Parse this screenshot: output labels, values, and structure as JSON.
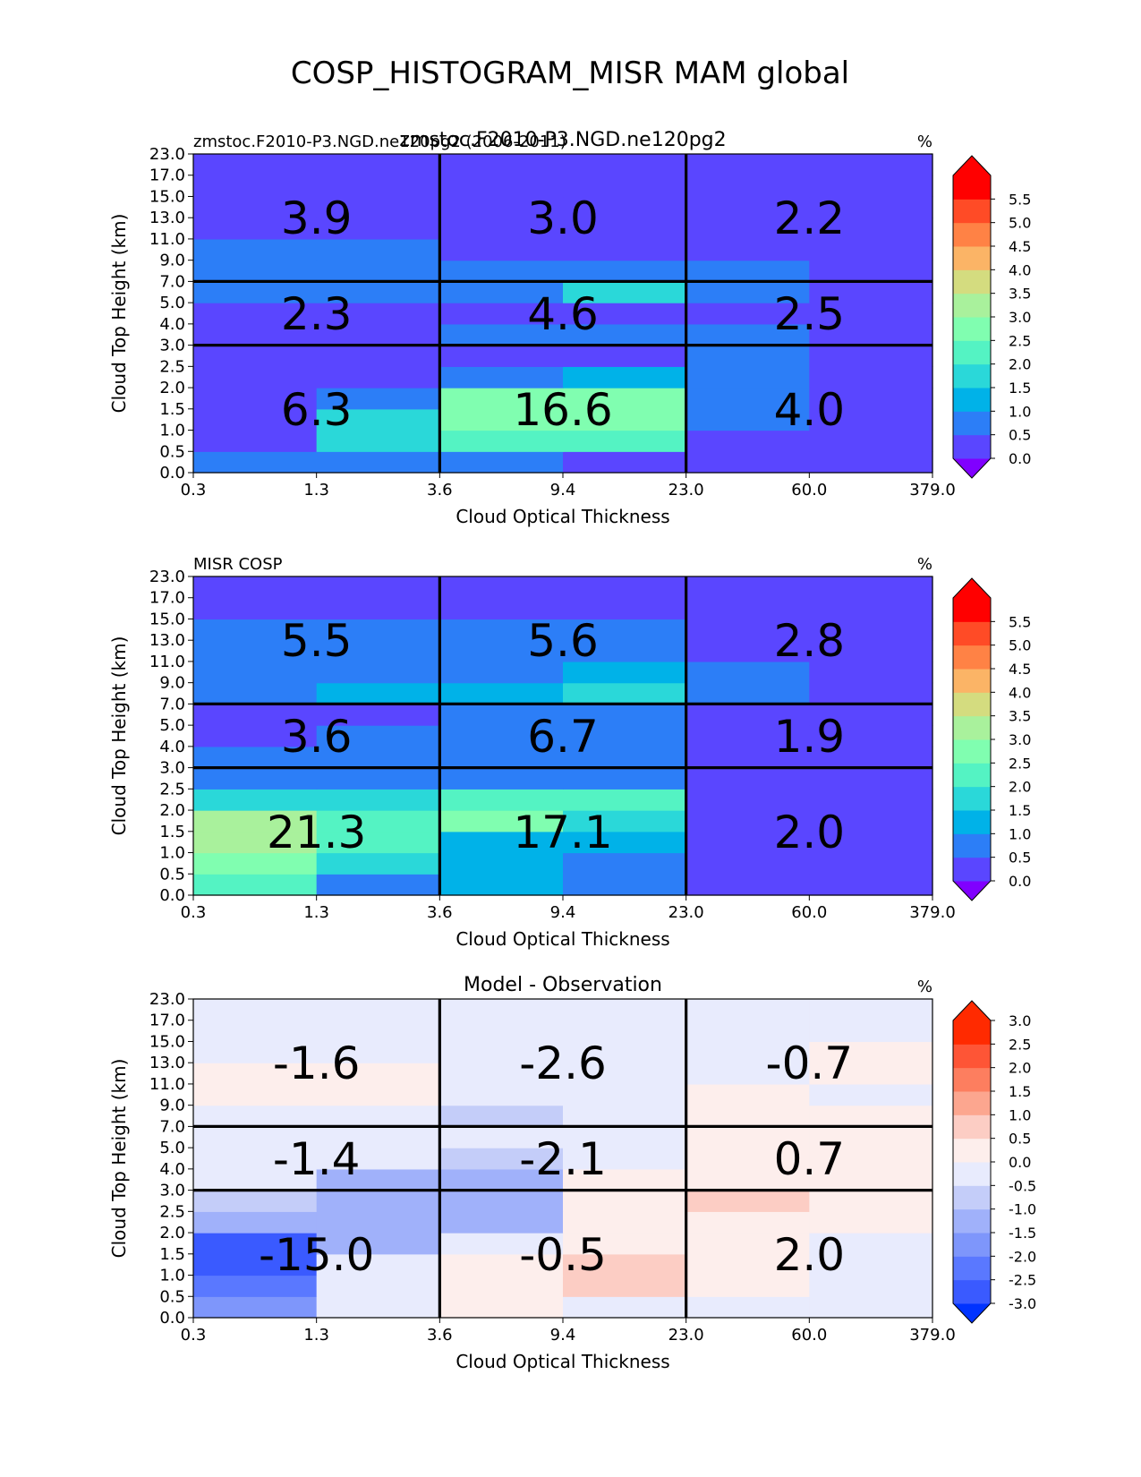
{
  "suptitle": "COSP_HISTOGRAM_MISR MAM global",
  "chart_data": [
    {
      "type": "heatmap",
      "title": "zmstoc.F2010-P3.NGD.ne120pg2",
      "left_title": "zmstoc.F2010-P3.NGD.ne120pg2 (2006-2011)",
      "right_title": "%",
      "xlabel": "Cloud Optical Thickness",
      "ylabel": "Cloud Top Height (km)",
      "x_ticks": [
        "0.3",
        "1.3",
        "3.6",
        "9.4",
        "23.0",
        "60.0",
        "379.0"
      ],
      "y_ticks": [
        "0.0",
        "0.5",
        "1.0",
        "1.5",
        "2.0",
        "2.5",
        "3.0",
        "4.0",
        "5.0",
        "7.0",
        "9.0",
        "11.0",
        "13.0",
        "15.0",
        "17.0",
        "23.0"
      ],
      "colorbar_ticks": [
        "0.0",
        "0.5",
        "1.0",
        "1.5",
        "2.0",
        "2.5",
        "3.0",
        "3.5",
        "4.0",
        "4.5",
        "5.0",
        "5.5"
      ],
      "colormap": "rainbow",
      "levels": [
        0,
        0.5,
        1,
        1.5,
        2,
        2.5,
        3,
        3.5,
        4,
        4.5,
        5,
        5.5
      ],
      "values": [
        [
          0.7,
          0.7,
          0.7,
          0.2,
          0.2,
          0.2
        ],
        [
          0.2,
          1.7,
          2.2,
          2.2,
          0.2,
          0.2
        ],
        [
          0.2,
          1.7,
          2.7,
          2.7,
          0.7,
          0.2
        ],
        [
          0.2,
          0.7,
          2.7,
          2.7,
          0.7,
          0.2
        ],
        [
          0.2,
          0.2,
          0.7,
          1.2,
          0.7,
          0.2
        ],
        [
          0.2,
          0.2,
          0.2,
          0.2,
          0.7,
          0.2
        ],
        [
          0.2,
          0.2,
          0.7,
          0.7,
          0.7,
          0.2
        ],
        [
          0.2,
          0.2,
          0.2,
          0.2,
          0.2,
          0.2
        ],
        [
          0.7,
          0.7,
          0.7,
          1.7,
          0.7,
          0.2
        ],
        [
          0.7,
          0.7,
          0.7,
          0.7,
          0.7,
          0.2
        ],
        [
          0.7,
          0.7,
          0.2,
          0.2,
          0.2,
          0.2
        ],
        [
          0.2,
          0.2,
          0.2,
          0.2,
          0.2,
          0.2
        ],
        [
          0.2,
          0.2,
          0.2,
          0.2,
          0.2,
          0.2
        ],
        [
          0.2,
          0.2,
          0.2,
          0.2,
          0.2,
          0.2
        ],
        [
          0.2,
          0.2,
          0.2,
          0.2,
          0.2,
          0.2
        ]
      ],
      "annotations": [
        {
          "col": 0,
          "row": 0,
          "text": "6.3"
        },
        {
          "col": 1,
          "row": 0,
          "text": "16.6"
        },
        {
          "col": 2,
          "row": 0,
          "text": "4.0"
        },
        {
          "col": 0,
          "row": 1,
          "text": "2.3"
        },
        {
          "col": 1,
          "row": 1,
          "text": "4.6"
        },
        {
          "col": 2,
          "row": 1,
          "text": "2.5"
        },
        {
          "col": 0,
          "row": 2,
          "text": "3.9"
        },
        {
          "col": 1,
          "row": 2,
          "text": "3.0"
        },
        {
          "col": 2,
          "row": 2,
          "text": "2.2"
        }
      ]
    },
    {
      "type": "heatmap",
      "title": "",
      "left_title": "MISR COSP",
      "right_title": "%",
      "xlabel": "Cloud Optical Thickness",
      "ylabel": "Cloud Top Height (km)",
      "x_ticks": [
        "0.3",
        "1.3",
        "3.6",
        "9.4",
        "23.0",
        "60.0",
        "379.0"
      ],
      "y_ticks": [
        "0.0",
        "0.5",
        "1.0",
        "1.5",
        "2.0",
        "2.5",
        "3.0",
        "4.0",
        "5.0",
        "7.0",
        "9.0",
        "11.0",
        "13.0",
        "15.0",
        "17.0",
        "23.0"
      ],
      "colorbar_ticks": [
        "0.0",
        "0.5",
        "1.0",
        "1.5",
        "2.0",
        "2.5",
        "3.0",
        "3.5",
        "4.0",
        "4.5",
        "5.0",
        "5.5"
      ],
      "colormap": "rainbow",
      "levels": [
        0,
        0.5,
        1,
        1.5,
        2,
        2.5,
        3,
        3.5,
        4,
        4.5,
        5,
        5.5
      ],
      "values": [
        [
          2.2,
          0.7,
          1.2,
          0.7,
          0.2,
          0.2
        ],
        [
          2.7,
          1.7,
          1.2,
          0.7,
          0.2,
          0.2
        ],
        [
          3.2,
          2.2,
          1.2,
          1.2,
          0.2,
          0.2
        ],
        [
          3.2,
          2.2,
          2.7,
          1.7,
          0.2,
          0.2
        ],
        [
          1.7,
          1.7,
          2.2,
          2.2,
          0.2,
          0.2
        ],
        [
          0.7,
          0.7,
          0.7,
          0.7,
          0.2,
          0.2
        ],
        [
          0.7,
          0.7,
          0.7,
          0.7,
          0.2,
          0.2
        ],
        [
          0.2,
          0.7,
          0.7,
          0.7,
          0.2,
          0.2
        ],
        [
          0.2,
          0.2,
          0.7,
          0.7,
          0.2,
          0.2
        ],
        [
          0.7,
          1.2,
          1.2,
          1.7,
          0.7,
          0.2
        ],
        [
          0.7,
          0.7,
          0.7,
          1.2,
          0.7,
          0.2
        ],
        [
          0.7,
          0.7,
          0.7,
          0.7,
          0.2,
          0.2
        ],
        [
          0.7,
          0.7,
          0.7,
          0.7,
          0.2,
          0.2
        ],
        [
          0.2,
          0.2,
          0.2,
          0.2,
          0.2,
          0.2
        ],
        [
          0.2,
          0.2,
          0.2,
          0.2,
          0.2,
          0.2
        ]
      ],
      "annotations": [
        {
          "col": 0,
          "row": 0,
          "text": "21.3"
        },
        {
          "col": 1,
          "row": 0,
          "text": "17.1"
        },
        {
          "col": 2,
          "row": 0,
          "text": "2.0"
        },
        {
          "col": 0,
          "row": 1,
          "text": "3.6"
        },
        {
          "col": 1,
          "row": 1,
          "text": "6.7"
        },
        {
          "col": 2,
          "row": 1,
          "text": "1.9"
        },
        {
          "col": 0,
          "row": 2,
          "text": "5.5"
        },
        {
          "col": 1,
          "row": 2,
          "text": "5.6"
        },
        {
          "col": 2,
          "row": 2,
          "text": "2.8"
        }
      ]
    },
    {
      "type": "heatmap",
      "title": "Model - Observation",
      "left_title": "",
      "right_title": "%",
      "xlabel": "Cloud Optical Thickness",
      "ylabel": "Cloud Top Height (km)",
      "x_ticks": [
        "0.3",
        "1.3",
        "3.6",
        "9.4",
        "23.0",
        "60.0",
        "379.0"
      ],
      "y_ticks": [
        "0.0",
        "0.5",
        "1.0",
        "1.5",
        "2.0",
        "2.5",
        "3.0",
        "4.0",
        "5.0",
        "7.0",
        "9.0",
        "11.0",
        "13.0",
        "15.0",
        "17.0",
        "23.0"
      ],
      "colorbar_ticks": [
        "-3.0",
        "-2.5",
        "-2.0",
        "-1.5",
        "-1.0",
        "-0.5",
        "0.0",
        "0.5",
        "1.0",
        "1.5",
        "2.0",
        "2.5",
        "3.0"
      ],
      "colormap": "diverging-blue-red",
      "levels": [
        -3,
        -2.5,
        -2,
        -1.5,
        -1,
        -0.5,
        0,
        0.5,
        1,
        1.5,
        2,
        2.5,
        3
      ],
      "values": [
        [
          -1.7,
          -0.2,
          0.2,
          -0.2,
          -0.2,
          -0.2
        ],
        [
          -2.2,
          -0.2,
          0.2,
          0.7,
          0.2,
          -0.2
        ],
        [
          -2.7,
          -0.2,
          0.2,
          0.7,
          0.2,
          -0.2
        ],
        [
          -2.7,
          -1.2,
          -0.2,
          0.2,
          0.2,
          -0.2
        ],
        [
          -1.2,
          -1.2,
          -1.2,
          0.2,
          0.2,
          0.2
        ],
        [
          -0.7,
          -1.2,
          -1.2,
          0.2,
          0.7,
          0.2
        ],
        [
          -0.2,
          -1.2,
          -1.2,
          0.2,
          0.2,
          0.2
        ],
        [
          -0.2,
          -0.2,
          -0.7,
          -0.2,
          0.2,
          0.2
        ],
        [
          -0.2,
          -0.2,
          -0.2,
          -0.2,
          0.2,
          0.2
        ],
        [
          -0.2,
          -0.2,
          -0.7,
          -0.2,
          0.2,
          0.2
        ],
        [
          0.2,
          0.2,
          -0.2,
          -0.2,
          0.2,
          -0.2
        ],
        [
          0.2,
          0.2,
          -0.2,
          -0.2,
          -0.2,
          0.2
        ],
        [
          -0.2,
          -0.2,
          -0.2,
          -0.2,
          -0.2,
          0.2
        ],
        [
          -0.2,
          -0.2,
          -0.2,
          -0.2,
          -0.2,
          -0.2
        ],
        [
          -0.2,
          -0.2,
          -0.2,
          -0.2,
          -0.2,
          -0.2
        ]
      ],
      "annotations": [
        {
          "col": 0,
          "row": 0,
          "text": "-15.0"
        },
        {
          "col": 1,
          "row": 0,
          "text": "-0.5"
        },
        {
          "col": 2,
          "row": 0,
          "text": "2.0"
        },
        {
          "col": 0,
          "row": 1,
          "text": "-1.4"
        },
        {
          "col": 1,
          "row": 1,
          "text": "-2.1"
        },
        {
          "col": 2,
          "row": 1,
          "text": "0.7"
        },
        {
          "col": 0,
          "row": 2,
          "text": "-1.6"
        },
        {
          "col": 1,
          "row": 2,
          "text": "-2.6"
        },
        {
          "col": 2,
          "row": 2,
          "text": "-0.7"
        }
      ]
    }
  ],
  "colors": {
    "rainbow": [
      "#5a46ff",
      "#2c7ef7",
      "#00b2e8",
      "#2ad8d9",
      "#54f3c3",
      "#80feb0",
      "#a9f19c",
      "#d4dc7f",
      "#fbb466",
      "#ff8245",
      "#ff4b26",
      "#ff0000"
    ],
    "rainbow_under": "#8000ff",
    "diverging": [
      "#3a5aff",
      "#5a78ff",
      "#7e96fb",
      "#a0b1fa",
      "#c4cdf9",
      "#e8ebfd",
      "#fdeeec",
      "#fccdc4",
      "#fca68f",
      "#fd7e5f",
      "#fe5536",
      "#ff2a00"
    ],
    "diverging_under": "#0033ff",
    "diverging_over": "#ff2a00"
  }
}
